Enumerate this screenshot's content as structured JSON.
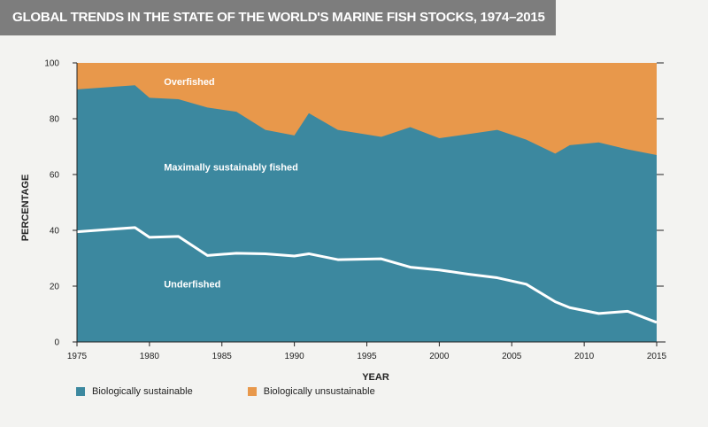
{
  "title": "GLOBAL TRENDS IN THE STATE OF THE WORLD'S MARINE FISH STOCKS, 1974–2015",
  "colors": {
    "sustainable": "#3c889f",
    "unsustainable": "#e8984b",
    "underfished_line": "#ffffff",
    "axis": "#222222"
  },
  "legend": {
    "sustainable": "Biologically sustainable",
    "unsustainable": "Biologically unsustainable"
  },
  "chart_data": {
    "type": "area",
    "title": "GLOBAL TRENDS IN THE STATE OF THE WORLD'S MARINE FISH STOCKS, 1974–2015",
    "xlabel": "YEAR",
    "ylabel": "PERCENTAGE",
    "xlim": [
      1975,
      2015
    ],
    "ylim": [
      0,
      100
    ],
    "xticks": [
      1975,
      1980,
      1985,
      1990,
      1995,
      2000,
      2005,
      2010,
      2015
    ],
    "yticks": [
      0,
      20,
      40,
      60,
      80,
      100
    ],
    "series": [
      {
        "name": "Biologically sustainable (Underfished + Maximally sustainably fished)",
        "x": [
          1975,
          1979,
          1980,
          1982,
          1984,
          1986,
          1988,
          1990,
          1991,
          1993,
          1996,
          1998,
          2000,
          2002,
          2004,
          2006,
          2008,
          2009,
          2011,
          2013,
          2015
        ],
        "values": [
          90.5,
          92,
          87.5,
          87,
          84,
          82.5,
          76,
          74,
          82,
          76,
          73.5,
          77,
          73,
          74.5,
          76,
          72.5,
          67.5,
          70.5,
          71.5,
          69,
          67
        ]
      },
      {
        "name": "Underfished",
        "x": [
          1975,
          1979,
          1980,
          1982,
          1984,
          1986,
          1988,
          1990,
          1991,
          1993,
          1996,
          1998,
          2000,
          2002,
          2004,
          2006,
          2008,
          2009,
          2011,
          2013,
          2015
        ],
        "values": [
          39.5,
          41,
          37.5,
          37.8,
          31,
          31.8,
          31.6,
          30.8,
          31.6,
          29.5,
          29.8,
          26.8,
          25.8,
          24.3,
          23,
          20.7,
          14.4,
          12.3,
          10.2,
          11,
          7
        ]
      }
    ],
    "annotations": [
      {
        "text": "Overfished",
        "x": 1975.5,
        "y": 92
      },
      {
        "text": "Maximally sustainably fished",
        "x": 1975.5,
        "y": 61.5
      },
      {
        "text": "Underfished",
        "x": 1975.5,
        "y": 19.5
      }
    ]
  }
}
